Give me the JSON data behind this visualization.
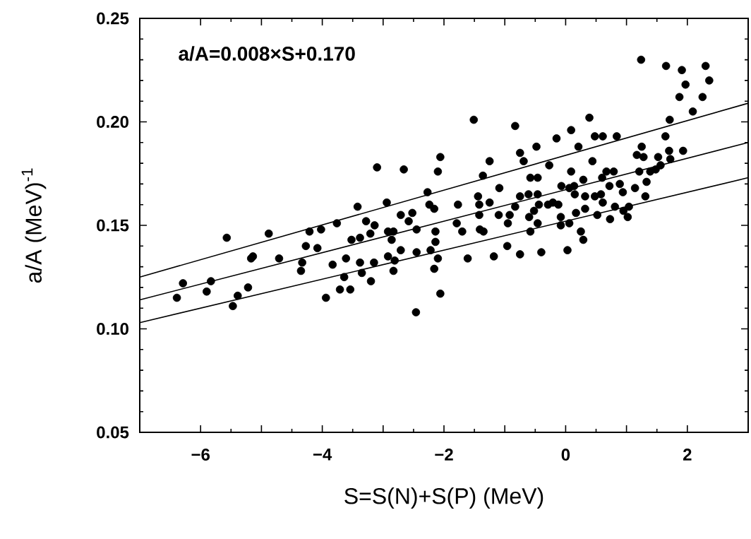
{
  "chart_data": {
    "type": "scatter",
    "xlabel": "S=S(N)+S(P) (MeV)",
    "ylabel": "a/A (MeV)$^{-1}$",
    "annotations": [
      "a/A=0.008×S+0.170"
    ],
    "xlim": [
      -7,
      3
    ],
    "ylim": [
      0.05,
      0.25
    ],
    "xticks": [
      {
        "value": -6,
        "label": "−6"
      },
      {
        "value": -5,
        "label": null
      },
      {
        "value": -4,
        "label": "−4"
      },
      {
        "value": -3,
        "label": null
      },
      {
        "value": -2,
        "label": "−2"
      },
      {
        "value": -1,
        "label": null
      },
      0,
      {
        "value": 1,
        "label": null
      },
      2
    ],
    "yticks": [
      0.05,
      {
        "value": 0.1,
        "label": "0.10"
      },
      0.15,
      {
        "value": 0.2,
        "label": "0.20"
      },
      0.25
    ],
    "grid": false,
    "line_style": "solid",
    "series": [
      {
        "marker": "circle",
        "color": "#000000",
        "x": [
          -6.39,
          -6.29,
          -5.9,
          -5.83,
          -5.57,
          -5.47,
          -5.39,
          -5.22,
          -5.17,
          -5.14,
          -4.88,
          -4.71,
          -4.35,
          -4.33,
          -4.27,
          -4.21,
          -4.08,
          -4.02,
          -3.94,
          -3.83,
          -3.76,
          -3.71,
          -3.64,
          -3.61,
          -3.54,
          -3.52,
          -3.42,
          -3.38,
          -3.38,
          -3.35,
          -3.28,
          -3.21,
          -3.2,
          -3.15,
          -3.14,
          -3.1,
          -2.94,
          -2.92,
          -2.92,
          -2.86,
          -2.83,
          -2.83,
          -2.81,
          -2.71,
          -2.71,
          -2.66,
          -2.58,
          -2.52,
          -2.46,
          -2.45,
          -2.45,
          -2.27,
          -2.24,
          -2.16,
          -2.14,
          -2.14,
          -2.16,
          -2.1,
          -2.06,
          -2.06,
          -2.1,
          -2.22,
          -1.77,
          -1.79,
          -1.7,
          -1.61,
          -1.51,
          -1.44,
          -1.42,
          -1.42,
          -1.36,
          -1.41,
          -1.35,
          -1.25,
          -1.25,
          -1.18,
          -1.09,
          -1.1,
          -0.96,
          -0.95,
          -0.92,
          -0.83,
          -0.83,
          -0.75,
          -0.69,
          -0.75,
          -0.75,
          -0.61,
          -0.58,
          -0.6,
          -0.58,
          -0.48,
          -0.46,
          -0.46,
          -0.52,
          -0.44,
          -0.46,
          -0.4,
          -0.29,
          -0.27,
          -0.21,
          -0.15,
          -0.12,
          -0.08,
          -0.08,
          -0.07,
          0.03,
          0.06,
          0.09,
          0.09,
          0.14,
          0.15,
          0.06,
          0.17,
          0.21,
          0.25,
          0.29,
          0.29,
          0.32,
          0.39,
          0.32,
          0.44,
          0.48,
          0.48,
          0.52,
          0.58,
          0.61,
          0.6,
          0.61,
          0.67,
          0.72,
          0.73,
          0.79,
          0.81,
          0.84,
          0.89,
          0.94,
          0.95,
          1.02,
          1.04,
          1.14,
          1.17,
          1.21,
          1.24,
          1.25,
          1.28,
          1.31,
          1.33,
          1.39,
          1.48,
          1.52,
          1.56,
          1.65,
          1.64,
          1.71,
          1.7,
          1.72,
          1.87,
          1.91,
          1.93,
          1.97,
          2.09,
          2.25,
          2.3,
          2.36
        ],
        "values": [
          0.115,
          0.122,
          0.118,
          0.123,
          0.144,
          0.111,
          0.116,
          0.12,
          0.134,
          0.135,
          0.146,
          0.134,
          0.128,
          0.132,
          0.14,
          0.147,
          0.139,
          0.148,
          0.115,
          0.131,
          0.151,
          0.119,
          0.125,
          0.134,
          0.119,
          0.143,
          0.159,
          0.144,
          0.132,
          0.127,
          0.152,
          0.146,
          0.123,
          0.132,
          0.15,
          0.178,
          0.161,
          0.147,
          0.135,
          0.143,
          0.147,
          0.128,
          0.133,
          0.155,
          0.138,
          0.177,
          0.152,
          0.156,
          0.108,
          0.148,
          0.137,
          0.166,
          0.16,
          0.158,
          0.147,
          0.142,
          0.129,
          0.134,
          0.117,
          0.183,
          0.176,
          0.138,
          0.16,
          0.151,
          0.147,
          0.134,
          0.201,
          0.164,
          0.16,
          0.155,
          0.174,
          0.148,
          0.147,
          0.181,
          0.161,
          0.135,
          0.168,
          0.155,
          0.14,
          0.151,
          0.155,
          0.198,
          0.159,
          0.185,
          0.181,
          0.164,
          0.136,
          0.165,
          0.173,
          0.154,
          0.147,
          0.188,
          0.173,
          0.165,
          0.157,
          0.16,
          0.151,
          0.137,
          0.16,
          0.179,
          0.161,
          0.192,
          0.16,
          0.154,
          0.15,
          0.169,
          0.138,
          0.168,
          0.176,
          0.196,
          0.169,
          0.165,
          0.151,
          0.156,
          0.188,
          0.147,
          0.172,
          0.143,
          0.164,
          0.202,
          0.158,
          0.181,
          0.193,
          0.164,
          0.155,
          0.165,
          0.193,
          0.173,
          0.161,
          0.176,
          0.169,
          0.153,
          0.176,
          0.159,
          0.193,
          0.17,
          0.166,
          0.157,
          0.154,
          0.159,
          0.168,
          0.184,
          0.176,
          0.23,
          0.188,
          0.183,
          0.164,
          0.171,
          0.176,
          0.177,
          0.183,
          0.179,
          0.227,
          0.193,
          0.201,
          0.186,
          0.182,
          0.212,
          0.225,
          0.186,
          0.218,
          0.205,
          0.212,
          0.227,
          0.22
        ]
      },
      {
        "type": "line",
        "marker": "none",
        "color": "#000000",
        "x": [
          -7,
          3
        ],
        "values": [
          0.125,
          0.209
        ]
      },
      {
        "type": "line",
        "marker": "none",
        "color": "#000000",
        "x": [
          -7,
          3
        ],
        "values": [
          0.114,
          0.19
        ]
      },
      {
        "type": "line",
        "marker": "none",
        "color": "#000000",
        "x": [
          -7,
          3
        ],
        "values": [
          0.103,
          0.173
        ]
      }
    ]
  }
}
